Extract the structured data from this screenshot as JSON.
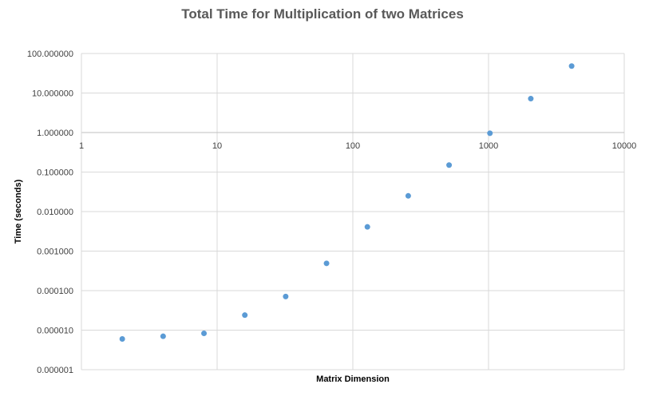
{
  "chart_data": {
    "type": "scatter",
    "title": "Total Time for Multiplication of two Matrices",
    "xlabel": "Matrix Dimension",
    "ylabel": "Time (seconds)",
    "xscale": "log",
    "yscale": "log",
    "xlim": [
      1,
      10000
    ],
    "ylim": [
      1e-06,
      100
    ],
    "grid": true,
    "legend": "none",
    "marker_color": "#5B9BD5",
    "grid_color": "#D9D9D9",
    "x_tick_labels": [
      "1",
      "10",
      "100",
      "1000",
      "10000"
    ],
    "y_tick_labels": [
      "100.000000",
      "10.000000",
      "1.000000",
      "0.100000",
      "0.010000",
      "0.001000",
      "0.000100",
      "0.000010",
      "0.000001"
    ],
    "series": [
      {
        "x": [
          2,
          4,
          8,
          16,
          32,
          64,
          128,
          256,
          512,
          1024,
          2048,
          4096
        ],
        "y": [
          6e-06,
          7e-06,
          8.3e-06,
          2.4e-05,
          7.1e-05,
          0.00049,
          0.0041,
          0.025,
          0.15,
          0.96,
          7.2,
          48
        ]
      }
    ]
  }
}
